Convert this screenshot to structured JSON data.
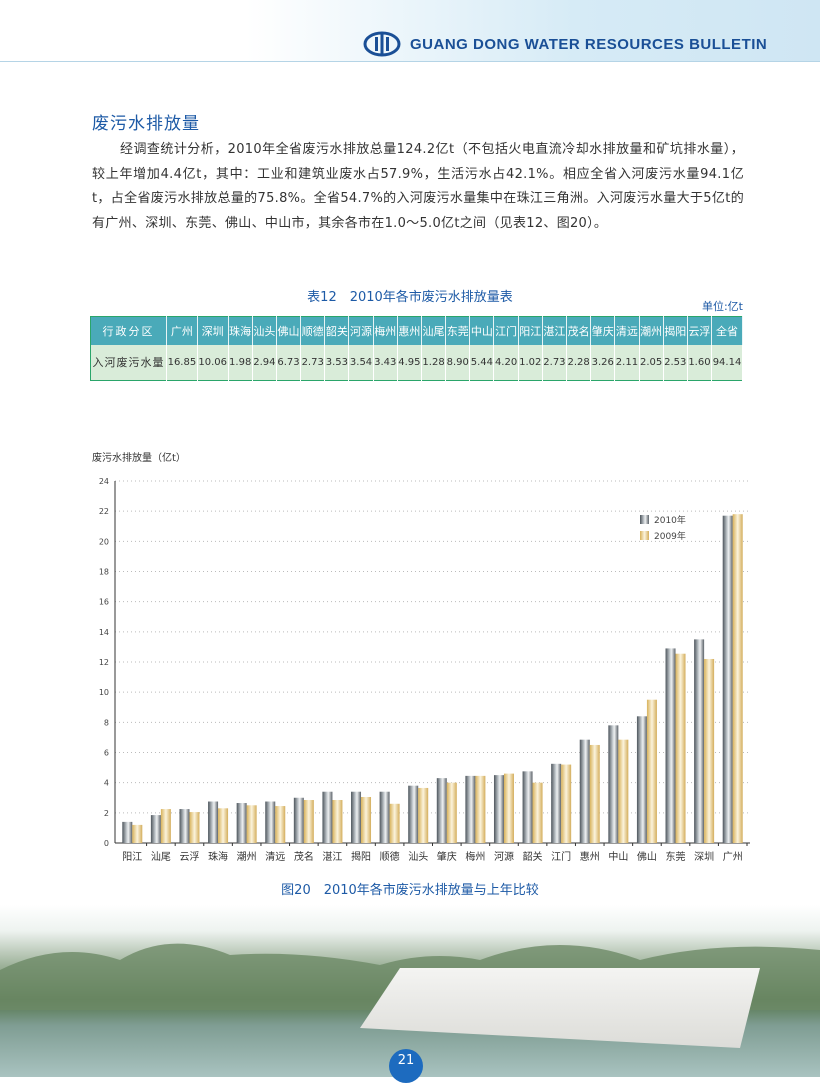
{
  "header": {
    "title": "GUANG DONG WATER RESOURCES BULLETIN",
    "logo": "guangdong-water-logo"
  },
  "section": {
    "title": "废污水排放量",
    "paragraph": "经调查统计分析，2010年全省废污水排放总量124.2亿t（不包括火电直流冷却水排放量和矿坑排水量），较上年增加4.4亿t，其中：工业和建筑业废水占57.9%，生活污水占42.1%。相应全省入河废污水量94.1亿t，占全省废污水排放总量的75.8%。全省54.7%的入河废污水量集中在珠江三角洲。入河废污水量大于5亿t的有广州、深圳、东莞、佛山、中山市，其余各市在1.0～5.0亿t之间（见表12、图20）。"
  },
  "table": {
    "caption": "表12　2010年各市废污水排放量表",
    "unit": "单位:亿t",
    "header_first": "行政分区",
    "columns": [
      "广州",
      "深圳",
      "珠海",
      "汕头",
      "佛山",
      "顺德",
      "韶关",
      "河源",
      "梅州",
      "惠州",
      "汕尾",
      "东莞",
      "中山",
      "江门",
      "阳江",
      "湛江",
      "茂名",
      "肇庆",
      "清远",
      "潮州",
      "揭阳",
      "云浮",
      "全省"
    ],
    "row_label": "入河废污水量",
    "values": [
      "16.85",
      "10.06",
      "1.98",
      "2.94",
      "6.73",
      "2.73",
      "3.53",
      "3.54",
      "3.43",
      "4.95",
      "1.28",
      "8.90",
      "5.44",
      "4.20",
      "1.02",
      "2.73",
      "2.28",
      "3.26",
      "2.11",
      "2.05",
      "2.53",
      "1.60",
      "94.14"
    ]
  },
  "chart_data": {
    "type": "bar",
    "ylabel": "废污水排放量（亿t）",
    "ylim": [
      0,
      24
    ],
    "yticks": [
      0,
      2,
      4,
      6,
      8,
      10,
      12,
      14,
      16,
      18,
      20,
      22,
      24
    ],
    "grid": true,
    "legend_position": "top-right",
    "caption": "图20　2010年各市废污水排放量与上年比较",
    "categories": [
      "阳江",
      "汕尾",
      "云浮",
      "珠海",
      "潮州",
      "清远",
      "茂名",
      "湛江",
      "揭阳",
      "顺德",
      "汕头",
      "肇庆",
      "梅州",
      "河源",
      "韶关",
      "江门",
      "惠州",
      "中山",
      "佛山",
      "东莞",
      "深圳",
      "广州"
    ],
    "series": [
      {
        "name": "2010年",
        "color": "#5a6168",
        "values": [
          1.4,
          1.85,
          2.25,
          2.75,
          2.65,
          2.75,
          3.0,
          3.4,
          3.4,
          3.4,
          3.8,
          4.3,
          4.45,
          4.5,
          4.75,
          5.25,
          6.85,
          7.8,
          8.4,
          12.9,
          13.5,
          21.7
        ]
      },
      {
        "name": "2009年",
        "color": "#dcb866",
        "values": [
          1.2,
          2.25,
          2.05,
          2.3,
          2.5,
          2.45,
          2.85,
          2.85,
          3.05,
          2.6,
          3.65,
          4.0,
          4.45,
          4.6,
          4.0,
          5.2,
          6.5,
          6.85,
          9.5,
          12.55,
          12.2,
          21.8
        ]
      }
    ]
  },
  "page_number": "21"
}
